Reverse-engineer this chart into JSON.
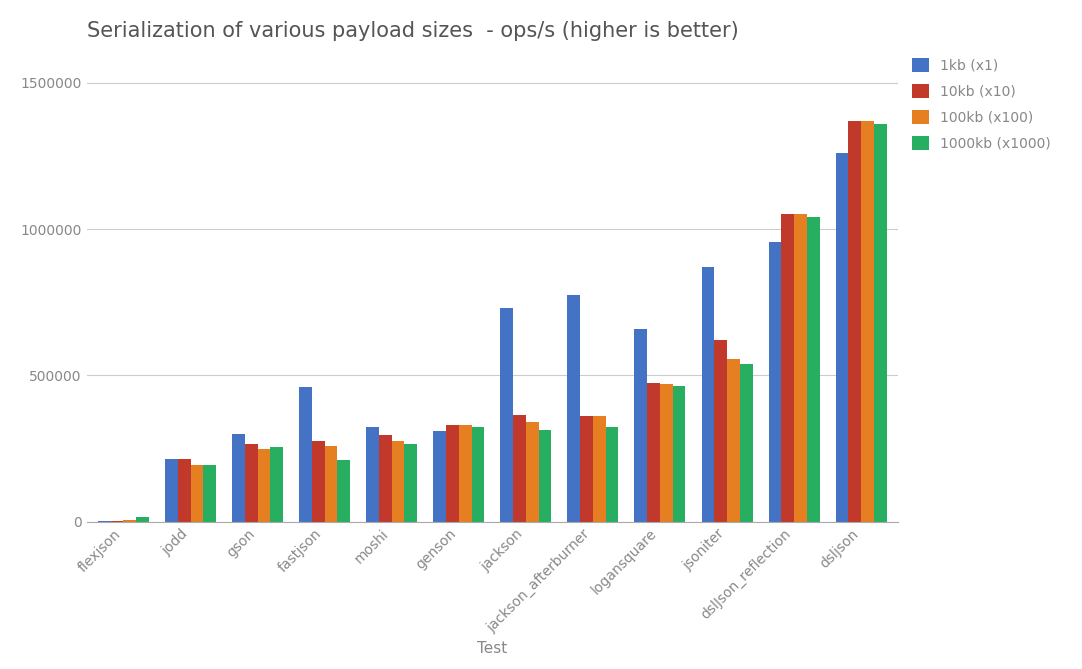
{
  "title": "Serialization of various payload sizes  - ops/s (higher is better)",
  "xlabel": "Test",
  "ylabel": "",
  "categories": [
    "flexjson",
    "jodd",
    "gson",
    "fastjson",
    "moshi",
    "genson",
    "jackson",
    "jackson_afterburner",
    "logansquare",
    "jsoniter",
    "dslJson_reflection",
    "dsljson"
  ],
  "series": {
    "1kb (x1)": [
      2000,
      215000,
      300000,
      460000,
      325000,
      310000,
      730000,
      775000,
      660000,
      870000,
      955000,
      1260000
    ],
    "10kb (x10)": [
      3000,
      215000,
      265000,
      275000,
      295000,
      330000,
      365000,
      360000,
      475000,
      620000,
      1050000,
      1370000
    ],
    "100kb (x100)": [
      5000,
      195000,
      250000,
      260000,
      275000,
      330000,
      340000,
      360000,
      470000,
      555000,
      1050000,
      1370000
    ],
    "1000kb (x1000)": [
      18000,
      195000,
      255000,
      210000,
      265000,
      325000,
      315000,
      325000,
      465000,
      540000,
      1040000,
      1360000
    ]
  },
  "colors": {
    "1kb (x1)": "#4472c4",
    "10kb (x10)": "#c0392b",
    "100kb (x100)": "#e67e22",
    "1000kb (x1000)": "#27ae60"
  },
  "ylim": [
    0,
    1600000
  ],
  "yticks": [
    0,
    500000,
    1000000,
    1500000
  ],
  "ytick_labels": [
    "0",
    "500000",
    "1000000",
    "1500000"
  ],
  "background_color": "#ffffff",
  "grid_color": "#cccccc",
  "title_fontsize": 15,
  "axis_label_fontsize": 11,
  "tick_fontsize": 10,
  "legend_fontsize": 10,
  "bar_width": 0.19
}
